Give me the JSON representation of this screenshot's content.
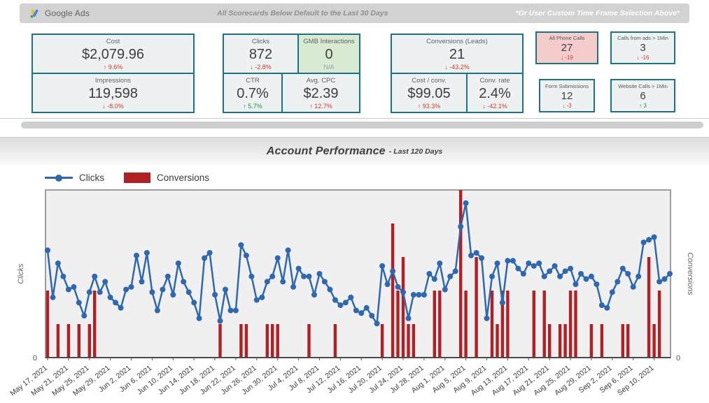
{
  "header": {
    "logo_text": "Google Ads",
    "center_note": "All Scorecards Below Default to the Last 30 Days",
    "right_note": "*Or User Custom Time Frame Selection Above*"
  },
  "colors": {
    "teal_border": "#1a7482",
    "delta_red": "#cf3a28",
    "delta_green": "#1e8e3e",
    "neutral_gray": "#9aa0a6",
    "line_blue": "#2d68b0",
    "bar_red": "#b02025",
    "pink_card": "#f4cccc",
    "green_card": "#d8ead2"
  },
  "scorecards": {
    "cost": {
      "label": "Cost",
      "value": "$2,079.96",
      "delta": "↑ 9.6%",
      "delta_color": "#cf3a28"
    },
    "impressions": {
      "label": "Impressions",
      "value": "119,598",
      "delta": "↓ -8.0%",
      "delta_color": "#cf3a28"
    },
    "clicks": {
      "label": "Clicks",
      "value": "872",
      "delta": "↓ -2.8%",
      "delta_color": "#cf3a28"
    },
    "gmb": {
      "label": "GMB Interactions",
      "value": "0",
      "delta": "N/A",
      "delta_color": "#9aa0a6"
    },
    "ctr": {
      "label": "CTR",
      "value": "0.7%",
      "delta": "↑ 5.7%",
      "delta_color": "#1e8e3e"
    },
    "avg_cpc": {
      "label": "Avg. CPC",
      "value": "$2.39",
      "delta": "↑ 12.7%",
      "delta_color": "#cf3a28"
    },
    "conversions": {
      "label": "Conversions (Leads)",
      "value": "21",
      "delta": "↓ -43.2%",
      "delta_color": "#cf3a28"
    },
    "cost_conv": {
      "label": "Cost / conv.",
      "value": "$99.05",
      "delta": "↑ 93.3%",
      "delta_color": "#cf3a28"
    },
    "conv_rate": {
      "label": "Conv. rate",
      "value": "2.4%",
      "delta": "↓ -42.1%",
      "delta_color": "#cf3a28"
    },
    "all_calls": {
      "label": "All Phone Calls",
      "value": "27",
      "delta": "↓ -19",
      "delta_color": "#cf3a28"
    },
    "ad_calls": {
      "label": "Calls from ads > 1Min",
      "value": "3",
      "delta": "↓ -16",
      "delta_color": "#cf3a28"
    },
    "forms": {
      "label": "Form Submissions",
      "value": "12",
      "delta": "↓ -3",
      "delta_color": "#cf3a28"
    },
    "web_calls": {
      "label": "Website Calls > 1Min",
      "value": "6",
      "delta": "↑ 3",
      "delta_color": "#1e8e3e"
    }
  },
  "section_title": {
    "title": "Account Performance",
    "subtitle": "- Last 120 Days"
  },
  "legend": {
    "items": [
      {
        "label": "Clicks",
        "type": "line",
        "color": "#2d68b0"
      },
      {
        "label": "Conversions",
        "type": "bar",
        "color": "#b02025"
      }
    ]
  },
  "chart_data": {
    "type": "line+bar",
    "title": "Account Performance - Last 120 Days",
    "start_date": "May 17, 2021",
    "end_date": "Sep 13, 2021",
    "days": 120,
    "x_tick_labels": [
      "May 17, 2021",
      "May 21, 2021",
      "May 25, 2021",
      "May 29, 2021",
      "Jun 2, 2021",
      "Jun 6, 2021",
      "Jun 10, 2021",
      "Jun 14, 2021",
      "Jun 18, 2021",
      "Jun 22, 2021",
      "Jun 26, 2021",
      "Jun 30, 2021",
      "Jul 4, 2021",
      "Jul 8, 2021",
      "Jul 12, 2021",
      "Jul 16, 2021",
      "Jul 20, 2021",
      "Jul 24, 2021",
      "Jul 28, 2021",
      "Aug 1, 2021",
      "Aug 5, 2021",
      "Aug 9, 2021",
      "Aug 13, 2021",
      "Aug 17, 2021",
      "Aug 21, 2021",
      "Aug 25, 2021",
      "Aug 29, 2021",
      "Sep 2, 2021",
      "Sep 6, 2021",
      "Sep 10, 2021"
    ],
    "x_tick_every_days": 4,
    "left_axis": {
      "label": "Clicks",
      "min_label": "0",
      "max": 64
    },
    "right_axis": {
      "label": "Conversions",
      "min_label": "0",
      "max": 5
    },
    "grid": false,
    "plot_background": "#f0f0f0",
    "series": [
      {
        "name": "Clicks",
        "type": "line",
        "color": "#2d68b0",
        "axis": "left",
        "values": [
          41,
          23,
          36,
          31,
          26,
          27,
          21,
          16,
          25,
          31,
          25,
          29,
          23,
          21,
          19,
          26,
          27,
          39,
          29,
          40,
          25,
          18,
          26,
          31,
          24,
          36,
          29,
          25,
          21,
          15,
          38,
          40,
          24,
          14,
          26,
          18,
          18,
          43,
          39,
          31,
          22,
          23,
          29,
          31,
          38,
          29,
          41,
          27,
          34,
          31,
          31,
          24,
          32,
          29,
          26,
          22,
          20,
          21,
          23,
          18,
          17,
          19,
          16,
          13,
          35,
          28,
          33,
          27,
          25,
          15,
          24,
          24,
          24,
          32,
          30,
          36,
          26,
          31,
          33,
          50,
          59,
          39,
          40,
          38,
          15,
          31,
          36,
          21,
          37,
          37,
          34,
          32,
          36,
          35,
          36,
          31,
          33,
          35,
          31,
          33,
          34,
          28,
          32,
          30,
          31,
          28,
          20,
          19,
          25,
          29,
          34,
          32,
          27,
          31,
          44,
          45,
          46,
          29,
          30,
          32
        ]
      },
      {
        "name": "Conversions",
        "type": "bar",
        "color": "#b02025",
        "axis": "right",
        "values": [
          2,
          0,
          1,
          0,
          1,
          0,
          1,
          0,
          1,
          2,
          0,
          0,
          0,
          0,
          0,
          0,
          0,
          0,
          0,
          0,
          0,
          0,
          0,
          0,
          0,
          0,
          0,
          0,
          0,
          0,
          0,
          0,
          0,
          1,
          0,
          0,
          0,
          1,
          1,
          0,
          0,
          0,
          1,
          1,
          1,
          0,
          0,
          0,
          0,
          0,
          1,
          0,
          0,
          0,
          0,
          1,
          0,
          0,
          0,
          0,
          0,
          0,
          0,
          0,
          1,
          0,
          4,
          2,
          3,
          1,
          1,
          0,
          0,
          0,
          2,
          2,
          0,
          0,
          0,
          5,
          2,
          0,
          3,
          0,
          0,
          2,
          1,
          2,
          2,
          0,
          0,
          0,
          0,
          2,
          0,
          2,
          1,
          0,
          1,
          1,
          2,
          2,
          0,
          0,
          1,
          0,
          1,
          0,
          0,
          0,
          1,
          1,
          0,
          0,
          0,
          3,
          1,
          2,
          0,
          0
        ]
      }
    ]
  }
}
